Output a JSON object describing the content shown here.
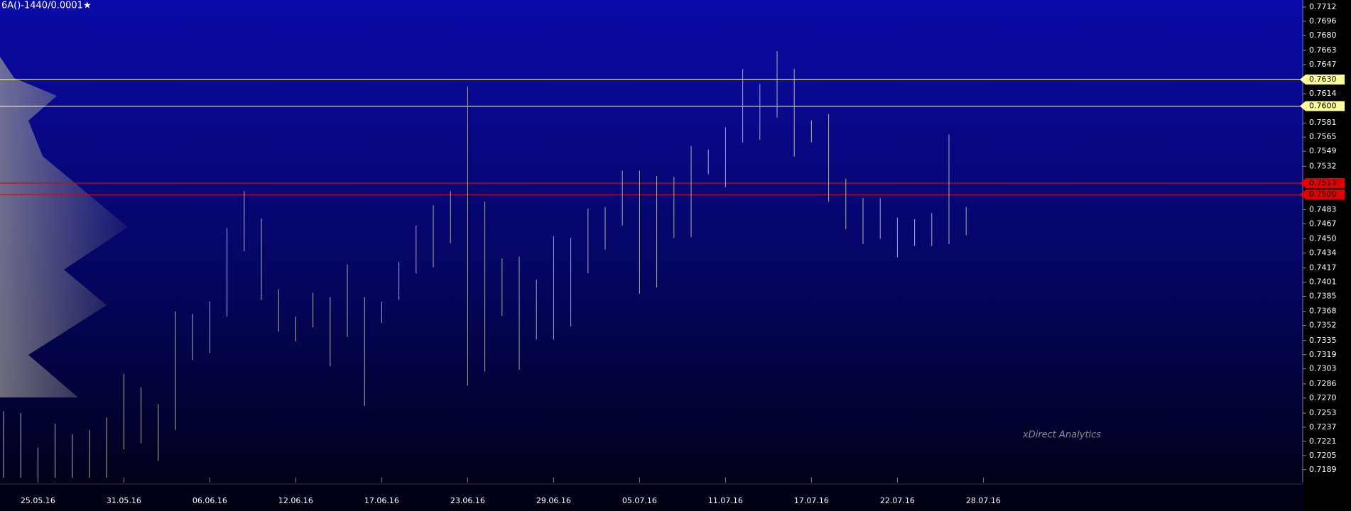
{
  "chart_data": {
    "type": "range",
    "title": "6A()-1440/0.0001★",
    "watermark": "xDirect Analytics",
    "categories": [
      null,
      null,
      "25.05.16",
      null,
      null,
      null,
      null,
      "31.05.16",
      null,
      null,
      null,
      null,
      "06.06.16",
      null,
      null,
      null,
      null,
      "12.06.16",
      null,
      null,
      null,
      null,
      "17.06.16",
      null,
      null,
      null,
      null,
      "23.06.16",
      null,
      null,
      null,
      null,
      "29.06.16",
      null,
      null,
      null,
      null,
      "05.07.16",
      null,
      null,
      null,
      null,
      "11.07.16",
      null,
      null,
      null,
      null,
      "17.07.16",
      null,
      null,
      null,
      null,
      "22.07.16",
      null,
      null,
      null,
      null,
      "28.07.16"
    ],
    "high": [
      0.7255,
      0.7253,
      0.7214,
      0.7241,
      0.7229,
      0.7234,
      0.7248,
      0.7297,
      0.7282,
      0.7263,
      0.7368,
      0.7365,
      0.7379,
      0.7462,
      0.7504,
      0.7473,
      0.7393,
      0.7362,
      0.7389,
      0.7384,
      0.7421,
      0.7384,
      0.7379,
      0.7424,
      0.7465,
      0.7488,
      0.7504,
      0.7622,
      0.7492,
      0.7428,
      0.743,
      0.7404,
      0.7453,
      0.7451,
      0.7484,
      0.7486,
      0.7527,
      0.7527,
      0.7521,
      0.752,
      0.7555,
      0.7551,
      0.7576,
      0.7642,
      0.7625,
      0.7662,
      0.7642,
      0.7584,
      0.7591,
      0.7518,
      0.7496,
      0.7496,
      0.7474,
      0.7472,
      0.7479,
      0.7568,
      0.7486,
      null
    ],
    "low": [
      0.718,
      0.718,
      0.718,
      0.718,
      0.718,
      0.718,
      0.718,
      0.7212,
      0.7219,
      0.7199,
      0.7234,
      0.7313,
      0.7321,
      0.7362,
      0.7436,
      0.7381,
      0.7345,
      0.7334,
      0.735,
      0.7306,
      0.7339,
      0.7261,
      0.7355,
      0.7381,
      0.7411,
      0.7418,
      0.7445,
      0.7284,
      0.73,
      0.7363,
      0.7302,
      0.7336,
      0.7336,
      0.7351,
      0.7411,
      0.7438,
      0.7465,
      0.7388,
      0.7395,
      0.7451,
      0.7452,
      0.7523,
      0.7508,
      0.7559,
      0.7562,
      0.7587,
      0.7543,
      0.7559,
      0.7492,
      0.7461,
      0.7444,
      0.745,
      0.7429,
      0.7442,
      0.7442,
      0.7444,
      0.7454,
      null
    ],
    "color": "#b0b0b0",
    "ylim": [
      0.718,
      0.772
    ],
    "yticks": [
      0.7712,
      0.7696,
      {
        "value": 0.768,
        "label": "0.7680"
      },
      0.7663,
      0.7647,
      0.7614,
      0.7581,
      0.7565,
      0.7549,
      0.7532,
      0.7483,
      0.7467,
      {
        "value": 0.745,
        "label": "0.7450"
      },
      0.7434,
      0.7417,
      0.7401,
      0.7385,
      0.7368,
      0.7352,
      0.7335,
      0.7319,
      0.7303,
      0.7286,
      {
        "value": 0.727,
        "label": "0.7270"
      },
      0.7253,
      0.7237,
      0.7221,
      0.7205,
      0.7189
    ],
    "levels": [
      {
        "value": 0.763,
        "label": "0.7630",
        "color": "#ffff99"
      },
      {
        "value": 0.76,
        "label": "0.7600",
        "color": "#ffff99"
      },
      {
        "value": 0.7513,
        "label": "0.7513",
        "color": "#e00000"
      },
      {
        "value": 0.75,
        "label": "0.7500",
        "color": "#e00000"
      }
    ]
  }
}
